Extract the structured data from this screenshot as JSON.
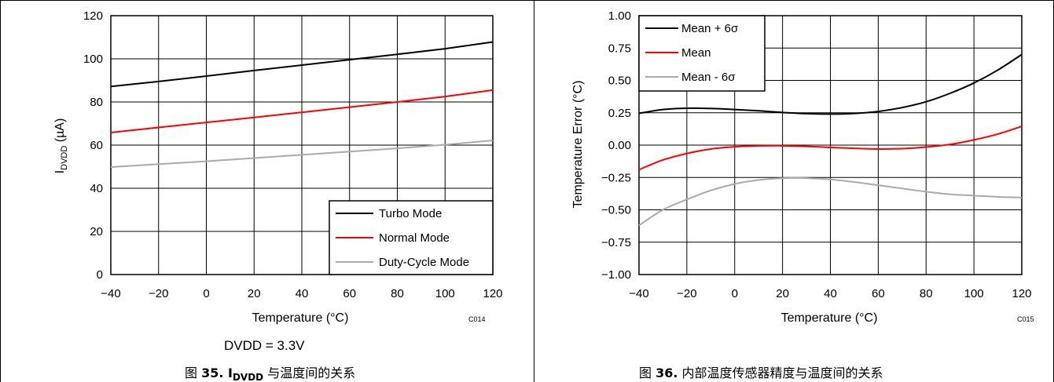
{
  "chart_data": [
    {
      "type": "line",
      "xlabel": "Temperature (°C)",
      "ylabel_main": "I",
      "ylabel_sub": "DVDD",
      "ylabel_unit": " (µA)",
      "code": "C014",
      "note": "DVDD = 3.3V",
      "caption_prefix": "图 ",
      "caption_num": "35.",
      "caption_i": " I",
      "caption_sub": "DVDD",
      "caption_rest": " 与温度间的关系",
      "xlim": [
        -40,
        120
      ],
      "ylim": [
        0,
        120
      ],
      "xticks": [
        "−40",
        "−20",
        "0",
        "20",
        "40",
        "60",
        "80",
        "100",
        "120"
      ],
      "yticks": [
        "0",
        "20",
        "40",
        "60",
        "80",
        "100",
        "120"
      ],
      "grid": true,
      "legend_position": "bottom-right",
      "x": [
        -40,
        -20,
        0,
        20,
        40,
        60,
        80,
        100,
        120
      ],
      "series": [
        {
          "name": "Turbo Mode",
          "color": "#000000",
          "values": [
            87.2,
            89.5,
            92.0,
            94.6,
            97.1,
            99.6,
            102.1,
            104.7,
            107.8
          ]
        },
        {
          "name": "Normal Mode",
          "color": "#ff0000",
          "values": [
            65.8,
            68.2,
            70.5,
            72.8,
            75.2,
            77.6,
            80.0,
            82.5,
            85.5
          ]
        },
        {
          "name": "Duty-Cycle Mode",
          "color": "#aaaaaa",
          "values": [
            49.8,
            51.2,
            52.5,
            54.0,
            55.5,
            57.0,
            58.5,
            60.2,
            62.2
          ]
        }
      ]
    },
    {
      "type": "line",
      "xlabel": "Temperature (°C)",
      "ylabel": "Temperature Error (°C)",
      "code": "C015",
      "caption_prefix": "图 ",
      "caption_num": "36.",
      "caption_rest": " 内部温度传感器精度与温度间的关系",
      "xlim": [
        -40,
        120
      ],
      "ylim": [
        -1.0,
        1.0
      ],
      "xticks": [
        "−40",
        "−20",
        "0",
        "20",
        "40",
        "60",
        "80",
        "100",
        "120"
      ],
      "yticks": [
        "1.00",
        "0.75",
        "0.50",
        "0.25",
        "0.00",
        "−0.25",
        "−0.50",
        "−0.75",
        "−1.00"
      ],
      "grid": true,
      "legend_position": "top-left",
      "x": [
        -40,
        -30,
        -20,
        -10,
        0,
        10,
        20,
        30,
        40,
        50,
        60,
        70,
        80,
        90,
        100,
        110,
        120
      ],
      "series": [
        {
          "name": "Mean + 6σ",
          "color": "#000000",
          "values": [
            0.245,
            0.275,
            0.285,
            0.283,
            0.275,
            0.265,
            0.252,
            0.243,
            0.24,
            0.245,
            0.26,
            0.29,
            0.335,
            0.4,
            0.48,
            0.58,
            0.7
          ]
        },
        {
          "name": "Mean",
          "color": "#ff0000",
          "values": [
            -0.19,
            -0.115,
            -0.065,
            -0.03,
            -0.013,
            -0.006,
            -0.005,
            -0.01,
            -0.018,
            -0.025,
            -0.03,
            -0.027,
            -0.015,
            0.005,
            0.04,
            0.085,
            0.145
          ]
        },
        {
          "name": "Mean - 6σ",
          "color": "#aaaaaa",
          "values": [
            -0.62,
            -0.5,
            -0.42,
            -0.35,
            -0.3,
            -0.27,
            -0.255,
            -0.255,
            -0.265,
            -0.285,
            -0.31,
            -0.335,
            -0.36,
            -0.38,
            -0.39,
            -0.4,
            -0.405
          ]
        }
      ]
    }
  ]
}
